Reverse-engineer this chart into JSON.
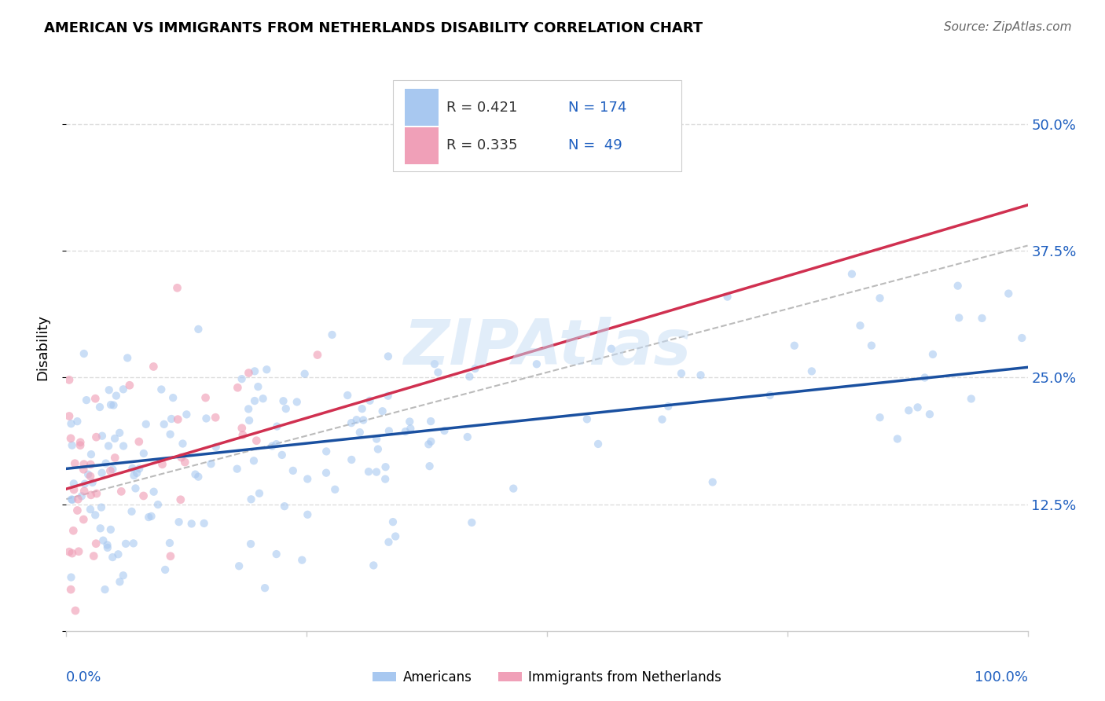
{
  "title": "AMERICAN VS IMMIGRANTS FROM NETHERLANDS DISABILITY CORRELATION CHART",
  "source": "Source: ZipAtlas.com",
  "ylabel": "Disability",
  "xlim": [
    0,
    100
  ],
  "ylim": [
    0,
    56
  ],
  "yticks": [
    0,
    12.5,
    25.0,
    37.5,
    50.0
  ],
  "ytick_labels": [
    "",
    "12.5%",
    "25.0%",
    "37.5%",
    "50.0%"
  ],
  "legend_r1": "R = 0.421",
  "legend_n1": "N = 174",
  "legend_r2": "R = 0.335",
  "legend_n2": "N =  49",
  "legend_label1": "Americans",
  "legend_label2": "Immigrants from Netherlands",
  "color_blue": "#A8C8F0",
  "color_pink": "#F0A0B8",
  "color_line_blue": "#1A50A0",
  "color_line_pink": "#D03050",
  "color_ref_line": "#BBBBBB",
  "color_axis_text": "#2060C0",
  "color_legend_text_black": "#333333",
  "background_color": "#FFFFFF",
  "watermark": "ZIPAtlas",
  "am_intercept": 16.0,
  "am_slope": 0.1,
  "neth_intercept": 14.0,
  "neth_slope": 0.28,
  "ref_x0": 0,
  "ref_x1": 100,
  "ref_y0": 13,
  "ref_y1": 38
}
